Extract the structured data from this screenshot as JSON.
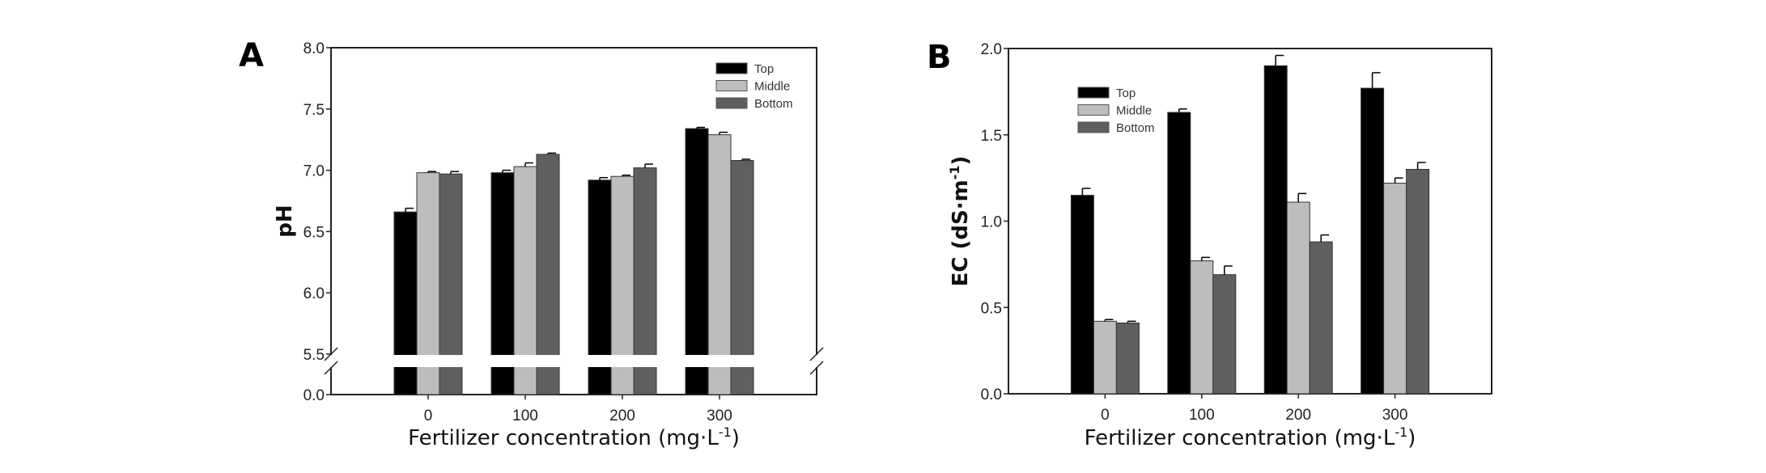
{
  "chart_data": [
    {
      "type": "bar",
      "panel_label": "A",
      "categories": [
        "0",
        "100",
        "200",
        "300"
      ],
      "xlabel": "Fertilizer concentration (mg·L",
      "xlabel_superscript": "-1",
      "xlabel_close": ")",
      "ylabel": "pH",
      "ylim": [
        0.0,
        8.0
      ],
      "y_axis_break": [
        0.0,
        5.5
      ],
      "yticks": [
        "0.0",
        "5.5",
        "6.0",
        "6.5",
        "7.0",
        "7.5",
        "8.0"
      ],
      "grid": false,
      "legend_position": "top-right",
      "series": [
        {
          "name": "Top",
          "color": "#000000",
          "values": [
            6.66,
            6.98,
            6.92,
            7.34
          ],
          "errors": [
            0.03,
            0.02,
            0.02,
            0.01
          ]
        },
        {
          "name": "Middle",
          "color": "#bdbdbd",
          "values": [
            6.98,
            7.03,
            6.95,
            7.29
          ],
          "errors": [
            0.01,
            0.03,
            0.01,
            0.02
          ]
        },
        {
          "name": "Bottom",
          "color": "#5f5f5f",
          "values": [
            6.97,
            7.13,
            7.02,
            7.08
          ],
          "errors": [
            0.02,
            0.01,
            0.03,
            0.01
          ]
        }
      ]
    },
    {
      "type": "bar",
      "panel_label": "B",
      "categories": [
        "0",
        "100",
        "200",
        "300"
      ],
      "xlabel": "Fertilizer concentration (mg·L",
      "xlabel_superscript": "-1",
      "xlabel_close": ")",
      "ylabel": "EC (dS·m",
      "ylabel_superscript": "-1",
      "ylabel_close": ")",
      "ylim": [
        0.0,
        2.0
      ],
      "yticks": [
        "0.0",
        "0.5",
        "1.0",
        "1.5",
        "2.0"
      ],
      "grid": false,
      "legend_position": "top-left",
      "series": [
        {
          "name": "Top",
          "color": "#000000",
          "values": [
            1.15,
            1.63,
            1.9,
            1.77
          ],
          "errors": [
            0.04,
            0.02,
            0.06,
            0.09
          ]
        },
        {
          "name": "Middle",
          "color": "#bdbdbd",
          "values": [
            0.42,
            0.77,
            1.11,
            1.22
          ],
          "errors": [
            0.01,
            0.02,
            0.05,
            0.03
          ]
        },
        {
          "name": "Bottom",
          "color": "#5f5f5f",
          "values": [
            0.41,
            0.69,
            0.88,
            1.3
          ],
          "errors": [
            0.01,
            0.05,
            0.04,
            0.04
          ]
        }
      ]
    }
  ]
}
